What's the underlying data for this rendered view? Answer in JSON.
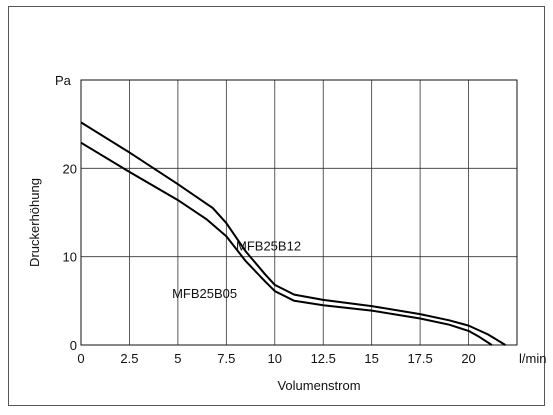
{
  "chart_data": {
    "type": "line",
    "xlabel": "Volumenstrom",
    "ylabel": "Druckerhöhung",
    "x_unit": "l/min",
    "y_unit": "Pa",
    "xlim": [
      0,
      22.5
    ],
    "ylim": [
      0,
      30
    ],
    "x_ticks": [
      0,
      2.5,
      5,
      7.5,
      10,
      12.5,
      15,
      17.5,
      20
    ],
    "x_tick_labels": [
      "0",
      "2.5",
      "5",
      "7.5",
      "10",
      "12.5",
      "15",
      "17.5",
      "20"
    ],
    "y_ticks": [
      0,
      10,
      20
    ],
    "y_tick_labels": [
      "0",
      "10",
      "20"
    ],
    "grid": true,
    "series": [
      {
        "name": "MFB25B12",
        "x": [
          0,
          2.5,
          5,
          6.8,
          7.5,
          8.5,
          9.5,
          10,
          11,
          12.5,
          15,
          17.5,
          19,
          20,
          21,
          21.9
        ],
        "y": [
          25.2,
          21.8,
          18.2,
          15.5,
          13.8,
          10.6,
          8.0,
          6.8,
          5.7,
          5.1,
          4.4,
          3.5,
          2.8,
          2.2,
          1.2,
          0
        ]
      },
      {
        "name": "MFB25B05",
        "x": [
          0,
          2.5,
          5,
          6.5,
          7.5,
          8.5,
          9.5,
          10,
          11,
          12.5,
          15,
          17.5,
          19,
          20,
          20.5,
          21.2
        ],
        "y": [
          22.9,
          19.6,
          16.4,
          14.2,
          12.3,
          9.5,
          7.2,
          6.1,
          5.0,
          4.5,
          3.9,
          3.0,
          2.3,
          1.6,
          1.0,
          0
        ]
      }
    ]
  }
}
